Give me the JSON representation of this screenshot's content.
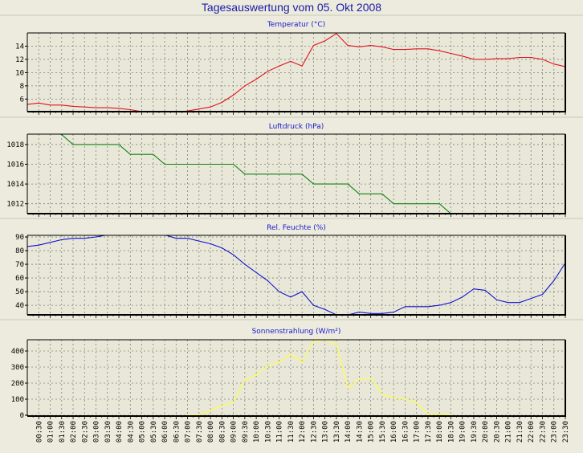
{
  "title": "Tagesauswertung vom 05. Okt 2008",
  "times": [
    "00:00",
    "00:30",
    "01:00",
    "01:30",
    "02:00",
    "02:30",
    "03:00",
    "03:30",
    "04:00",
    "04:30",
    "05:00",
    "05:30",
    "06:00",
    "06:30",
    "07:00",
    "07:30",
    "08:00",
    "08:30",
    "09:00",
    "09:30",
    "10:00",
    "10:30",
    "11:00",
    "11:30",
    "12:00",
    "12:30",
    "13:00",
    "13:30",
    "14:00",
    "14:30",
    "15:00",
    "15:30",
    "16:00",
    "16:30",
    "17:00",
    "17:30",
    "18:00",
    "18:30",
    "19:00",
    "19:30",
    "20:00",
    "20:30",
    "21:00",
    "21:30",
    "22:00",
    "22:30",
    "23:00",
    "23:30"
  ],
  "chart_data": [
    {
      "type": "line",
      "title": "Temperatur (°C)",
      "color": "#e01020",
      "ylim": [
        4.1,
        16
      ],
      "yticks": [
        6,
        8,
        10,
        12,
        14
      ],
      "values": [
        5.2,
        5.4,
        5.1,
        5.1,
        4.9,
        4.8,
        4.7,
        4.7,
        4.6,
        4.4,
        4.1,
        4.0,
        4.0,
        4.0,
        4.2,
        4.5,
        4.8,
        5.5,
        6.6,
        8.0,
        9.0,
        10.2,
        11.0,
        11.7,
        11.0,
        14.1,
        14.8,
        15.9,
        14.1,
        13.9,
        14.1,
        13.9,
        13.5,
        13.5,
        13.6,
        13.6,
        13.3,
        12.9,
        12.5,
        12.0,
        12.0,
        12.1,
        12.1,
        12.3,
        12.3,
        12.0,
        11.3,
        10.9
      ]
    },
    {
      "type": "line",
      "title": "Luftdruck (hPa)",
      "color": "#108010",
      "ylim": [
        1011,
        1019.05
      ],
      "yticks": [
        1012,
        1014,
        1016,
        1018
      ],
      "values": [
        1019.5,
        1019.5,
        1019.5,
        1019,
        1018,
        1018,
        1018,
        1018,
        1018,
        1017,
        1017,
        1017,
        1016,
        1016,
        1016,
        1016,
        1016,
        1016,
        1016,
        1015,
        1015,
        1015,
        1015,
        1015,
        1015,
        1014,
        1014,
        1014,
        1014,
        1013,
        1013,
        1013,
        1012,
        1012,
        1012,
        1012,
        1012,
        1011,
        1010.5,
        1010.5,
        1010.5,
        1010.5,
        1010.5,
        1010.5,
        1010.5,
        1010.5,
        1010.5,
        1010.5
      ]
    },
    {
      "type": "line",
      "title": "Rel. Feuchte (%)",
      "color": "#1010d0",
      "ylim": [
        33,
        91.2
      ],
      "yticks": [
        40,
        50,
        60,
        70,
        80,
        90
      ],
      "values": [
        83,
        84,
        86,
        88,
        89,
        89,
        90,
        91.5,
        92,
        92,
        92,
        92,
        91.5,
        89,
        89,
        87,
        85,
        82,
        77,
        70,
        64,
        58,
        50,
        46,
        50,
        40,
        37,
        33,
        33,
        35,
        34,
        34,
        35,
        39,
        39,
        39,
        40,
        42,
        46,
        52,
        51,
        44,
        42,
        42,
        45,
        48,
        58,
        71
      ]
    },
    {
      "type": "line",
      "title": "Sonnenstrahlung (W/m²)",
      "color": "#ffff40",
      "ylim": [
        -5,
        470
      ],
      "yticks": [
        0,
        100,
        200,
        300,
        400
      ],
      "values": [
        null,
        null,
        null,
        null,
        null,
        null,
        null,
        null,
        null,
        null,
        null,
        null,
        null,
        null,
        0,
        0,
        30,
        60,
        80,
        220,
        250,
        310,
        330,
        380,
        330,
        460,
        470,
        440,
        170,
        225,
        230,
        130,
        110,
        100,
        80,
        10,
        5,
        0,
        null,
        null,
        null,
        null,
        null,
        null,
        null,
        null,
        null,
        null
      ]
    }
  ]
}
